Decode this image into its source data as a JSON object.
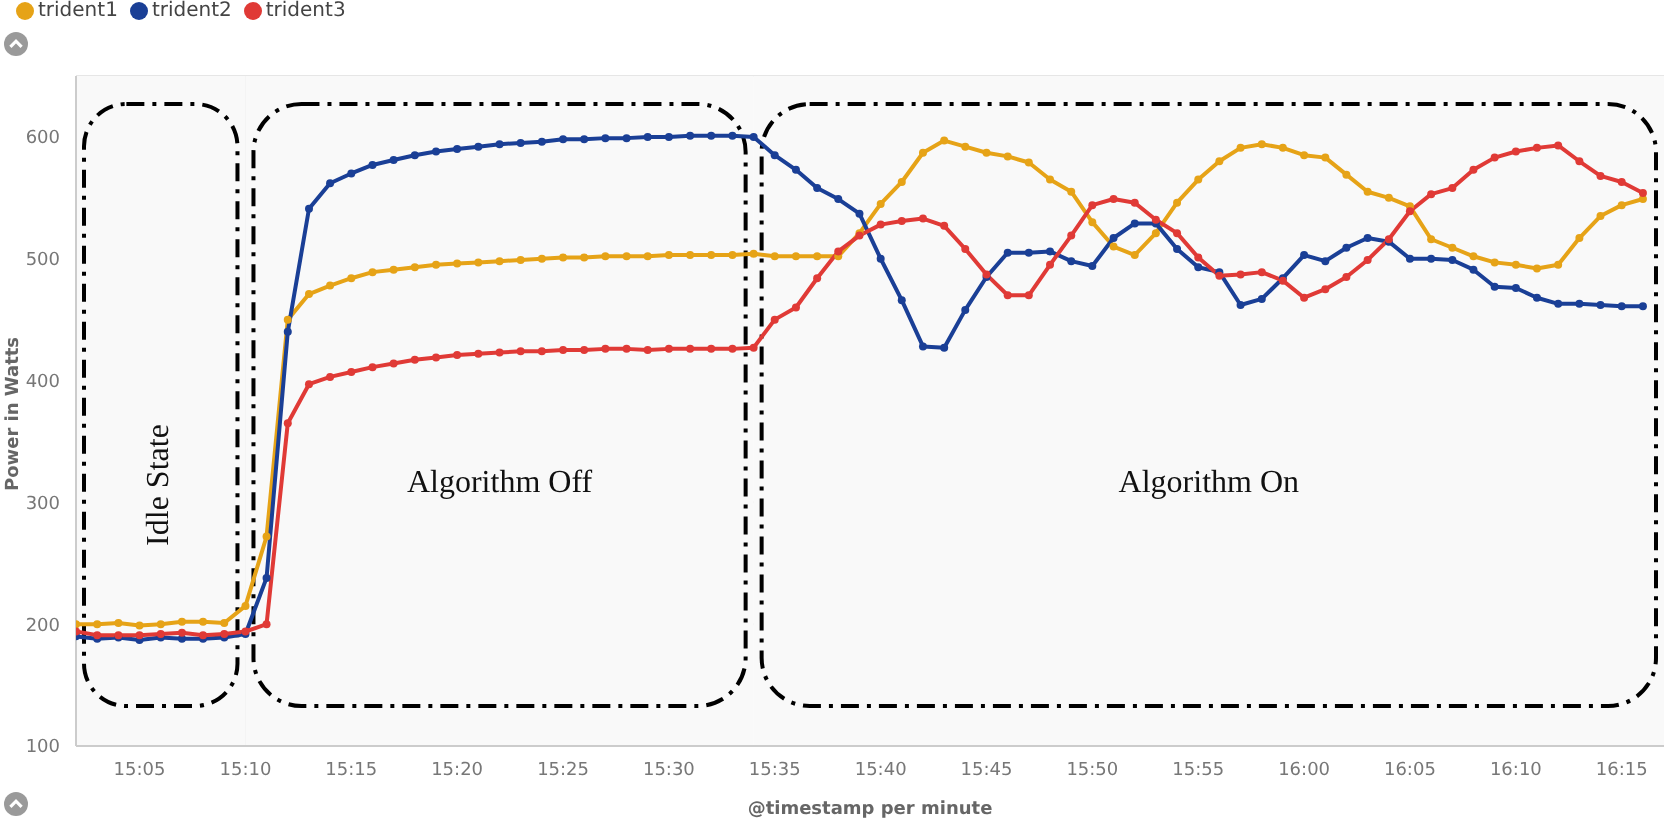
{
  "chart_data": {
    "type": "line",
    "xlabel": "@timestamp per minute",
    "ylabel": "Power in Watts",
    "x": [
      15.0333,
      15.05,
      15.0667,
      15.0833,
      15.1,
      15.1167,
      15.1333,
      15.15,
      15.1667,
      15.1833,
      15.2,
      15.2167,
      15.2333,
      15.25,
      15.2667,
      15.2833,
      15.3,
      15.3167,
      15.3333,
      15.35,
      15.3667,
      15.3833,
      15.4,
      15.4167,
      15.4333,
      15.45,
      15.4667,
      15.4833,
      15.5,
      15.5167,
      15.5333,
      15.55,
      15.5667,
      15.5833,
      15.6,
      15.6167,
      15.6333,
      15.65,
      15.6667,
      15.6833,
      15.7,
      15.7167,
      15.7333,
      15.75,
      15.7667,
      15.7833,
      15.8,
      15.8167,
      15.8333,
      15.85,
      15.8667,
      15.8833,
      15.9,
      15.9167,
      15.9333,
      15.95,
      15.9667,
      15.9833,
      16,
      16.0167,
      16.0333,
      16.05,
      16.0667,
      16.0833,
      16.1,
      16.1167,
      16.1333,
      16.15,
      16.1667,
      16.1833,
      16.2,
      16.2167,
      16.2333,
      16.25,
      16.2667
    ],
    "series": [
      {
        "name": "trident1",
        "color": "#e6a317",
        "values": [
          200,
          200,
          201,
          199,
          200,
          202,
          202,
          201,
          215,
          272,
          450,
          471,
          478,
          484,
          489,
          491,
          493,
          495,
          496,
          497,
          498,
          499,
          500,
          501,
          501,
          502,
          502,
          502,
          503,
          503,
          503,
          503,
          504,
          502,
          502,
          502,
          502,
          521,
          545,
          563,
          587,
          597,
          592,
          587,
          584,
          579,
          565,
          555,
          530,
          510,
          503,
          521,
          546,
          565,
          580,
          591,
          594,
          591,
          585,
          583,
          569,
          555,
          550,
          543,
          516,
          509,
          502,
          497,
          495,
          492,
          495,
          517,
          535,
          544,
          549
        ]
      },
      {
        "name": "trident2",
        "color": "#1a3f96",
        "values": [
          190,
          188,
          189,
          187,
          189,
          188,
          188,
          189,
          192,
          238,
          440,
          541,
          562,
          570,
          577,
          581,
          585,
          588,
          590,
          592,
          594,
          595,
          596,
          598,
          598,
          599,
          599,
          600,
          600,
          601,
          601,
          601,
          600,
          585,
          573,
          558,
          549,
          537,
          500,
          466,
          428,
          427,
          458,
          485,
          505,
          505,
          506,
          498,
          494,
          517,
          529,
          529,
          508,
          493,
          489,
          462,
          467,
          484,
          503,
          498,
          509,
          517,
          514,
          500,
          500,
          499,
          491,
          477,
          476,
          468,
          463,
          463,
          462,
          461,
          461
        ]
      },
      {
        "name": "trident3",
        "color": "#e03a36",
        "values": [
          194,
          191,
          191,
          191,
          192,
          193,
          191,
          192,
          194,
          200,
          365,
          397,
          403,
          407,
          411,
          414,
          417,
          419,
          421,
          422,
          423,
          424,
          424,
          425,
          425,
          426,
          426,
          425,
          426,
          426,
          426,
          426,
          427,
          450,
          460,
          484,
          506,
          519,
          528,
          531,
          533,
          527,
          508,
          487,
          470,
          470,
          495,
          519,
          544,
          549,
          546,
          532,
          521,
          501,
          486,
          487,
          489,
          482,
          468,
          475,
          485,
          499,
          516,
          539,
          553,
          558,
          573,
          583,
          588,
          591,
          593,
          580,
          568,
          563,
          554
        ]
      }
    ],
    "xlim": [
      15.0333,
      16.2833
    ],
    "ylim": [
      100,
      650
    ],
    "xticks": [
      {
        "value": 15.0833,
        "label": "15:05"
      },
      {
        "value": 15.1667,
        "label": "15:10"
      },
      {
        "value": 15.25,
        "label": "15:15"
      },
      {
        "value": 15.3333,
        "label": "15:20"
      },
      {
        "value": 15.4167,
        "label": "15:25"
      },
      {
        "value": 15.5,
        "label": "15:30"
      },
      {
        "value": 15.5833,
        "label": "15:35"
      },
      {
        "value": 15.6667,
        "label": "15:40"
      },
      {
        "value": 15.75,
        "label": "15:45"
      },
      {
        "value": 15.8333,
        "label": "15:50"
      },
      {
        "value": 15.9167,
        "label": "15:55"
      },
      {
        "value": 16,
        "label": "16:00"
      },
      {
        "value": 16.0833,
        "label": "16:05"
      },
      {
        "value": 16.1667,
        "label": "16:10"
      },
      {
        "value": 16.25,
        "label": "16:15"
      }
    ],
    "yticks": [
      100,
      200,
      300,
      400,
      500,
      600
    ],
    "bands": [
      {
        "axis": "x",
        "from": 15.0333,
        "to": 15.1667,
        "label": "Idle State",
        "color": "#f9f9f9"
      },
      {
        "axis": "x",
        "from": 15.1667,
        "to": 15.5667,
        "label": "Algorithm Off",
        "color": "#f9f9f9"
      },
      {
        "axis": "x",
        "from": 15.5667,
        "to": 16.2833,
        "label": "Algorithm On",
        "color": "#f9f9f9"
      }
    ],
    "grid": true,
    "legend": "top left",
    "marker": "circle",
    "line_style": "solid"
  }
}
